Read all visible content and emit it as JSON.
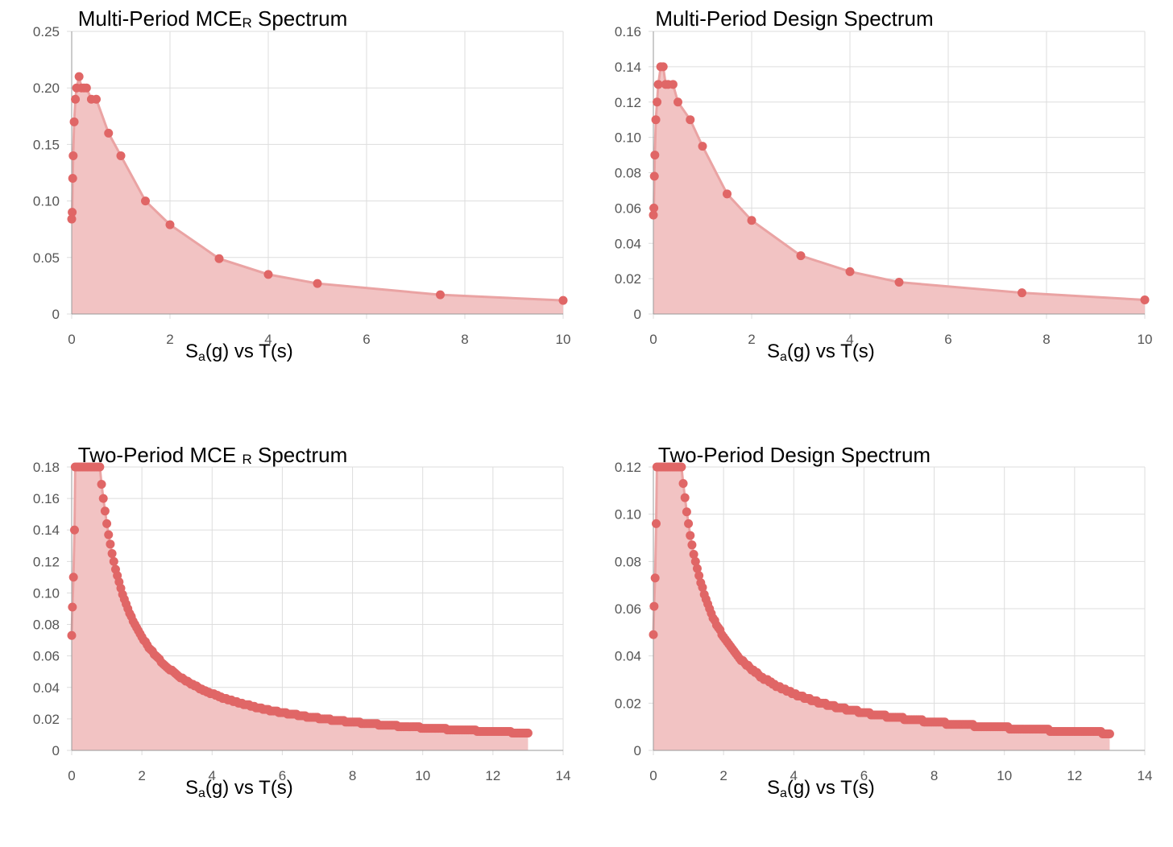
{
  "chart_data": [
    {
      "type": "area",
      "title": {
        "prefix": "Multi-Period MCE",
        "sub": "R",
        "suffix": " Spectrum"
      },
      "xlabel": {
        "prefix": "S",
        "sub": "a",
        "suffix": "(g) vs T(s)"
      },
      "xlim": [
        0,
        10
      ],
      "ylim": [
        0,
        0.25
      ],
      "xticks": [
        "0",
        "2",
        "4",
        "6",
        "8",
        "10"
      ],
      "yticks": [
        "0",
        "0.05",
        "0.10",
        "0.15",
        "0.20",
        "0.25"
      ],
      "grid": true,
      "color": "#e06666",
      "fill": "#f2c3c3",
      "x": [
        0,
        0.01,
        0.02,
        0.03,
        0.05,
        0.075,
        0.1,
        0.15,
        0.2,
        0.25,
        0.3,
        0.4,
        0.5,
        0.75,
        1,
        1.5,
        2,
        3,
        4,
        5,
        7.5,
        10
      ],
      "y": [
        0.084,
        0.09,
        0.12,
        0.14,
        0.17,
        0.19,
        0.2,
        0.21,
        0.2,
        0.2,
        0.2,
        0.19,
        0.19,
        0.16,
        0.14,
        0.1,
        0.079,
        0.049,
        0.035,
        0.027,
        0.017,
        0.012
      ]
    },
    {
      "type": "area",
      "title": {
        "prefix": "Multi-Period Design Spectrum",
        "sub": "",
        "suffix": ""
      },
      "xlabel": {
        "prefix": "S",
        "sub": "a",
        "suffix": "(g) vs T(s)"
      },
      "xlim": [
        0,
        10
      ],
      "ylim": [
        0,
        0.16
      ],
      "xticks": [
        "0",
        "2",
        "4",
        "6",
        "8",
        "10"
      ],
      "yticks": [
        "0",
        "0.02",
        "0.04",
        "0.06",
        "0.08",
        "0.10",
        "0.12",
        "0.14",
        "0.16"
      ],
      "grid": true,
      "color": "#e06666",
      "fill": "#f2c3c3",
      "x": [
        0,
        0.01,
        0.02,
        0.03,
        0.05,
        0.075,
        0.1,
        0.15,
        0.2,
        0.25,
        0.3,
        0.4,
        0.5,
        0.75,
        1,
        1.5,
        2,
        3,
        4,
        5,
        7.5,
        10
      ],
      "y": [
        0.056,
        0.06,
        0.078,
        0.09,
        0.11,
        0.12,
        0.13,
        0.14,
        0.14,
        0.13,
        0.13,
        0.13,
        0.12,
        0.11,
        0.095,
        0.068,
        0.053,
        0.033,
        0.024,
        0.018,
        0.012,
        0.008
      ]
    },
    {
      "type": "area",
      "title": {
        "prefix": "Two-Period MCE",
        "sub": "R",
        "suffix": "Spectrum"
      },
      "xlabel": {
        "prefix": "S",
        "sub": "a",
        "suffix": "(g) vs T(s)"
      },
      "xlim": [
        0,
        14
      ],
      "ylim": [
        0,
        0.18
      ],
      "xticks": [
        "0",
        "2",
        "4",
        "6",
        "8",
        "10",
        "12",
        "14"
      ],
      "yticks": [
        "0",
        "0.02",
        "0.04",
        "0.06",
        "0.08",
        "0.10",
        "0.12",
        "0.14",
        "0.16",
        "0.18"
      ],
      "grid": true,
      "color": "#e06666",
      "fill": "#f2c3c3",
      "spectrum": {
        "T0": 0.17,
        "TS": 0.8,
        "PGA": 0.073,
        "SDS": 0.18,
        "SD1": 0.144,
        "Tmax": 13,
        "step": 0.05
      },
      "x": [
        0,
        0.02,
        0.05,
        0.08,
        0.1,
        0.15,
        0.2,
        0.25,
        0.3,
        0.35,
        0.4,
        0.45,
        0.5,
        0.55,
        0.6,
        0.65,
        0.7,
        0.75,
        0.8
      ],
      "y": [
        0.073,
        0.091,
        0.11,
        0.14,
        0.18,
        0.18,
        0.18,
        0.18,
        0.18,
        0.18,
        0.18,
        0.18,
        0.18,
        0.18,
        0.18,
        0.18,
        0.18,
        0.18,
        0.18
      ]
    },
    {
      "type": "area",
      "title": {
        "prefix": "Two-Period Design Spectrum",
        "sub": "",
        "suffix": ""
      },
      "xlabel": {
        "prefix": "S",
        "sub": "a",
        "suffix": "(g) vs T(s)"
      },
      "xlim": [
        0,
        14
      ],
      "ylim": [
        0,
        0.12
      ],
      "xticks": [
        "0",
        "2",
        "4",
        "6",
        "8",
        "10",
        "12",
        "14"
      ],
      "yticks": [
        "0",
        "0.02",
        "0.04",
        "0.06",
        "0.08",
        "0.10",
        "0.12"
      ],
      "grid": true,
      "color": "#e06666",
      "fill": "#f2c3c3",
      "spectrum": {
        "T0": 0.17,
        "TS": 0.8,
        "PGA": 0.049,
        "SDS": 0.12,
        "SD1": 0.096,
        "Tmax": 13,
        "step": 0.05
      },
      "x": [
        0,
        0.02,
        0.05,
        0.08,
        0.1,
        0.15,
        0.2,
        0.25,
        0.3,
        0.35,
        0.4,
        0.45,
        0.5,
        0.55,
        0.6,
        0.65,
        0.7,
        0.75,
        0.8
      ],
      "y": [
        0.049,
        0.061,
        0.073,
        0.096,
        0.12,
        0.12,
        0.12,
        0.12,
        0.12,
        0.12,
        0.12,
        0.12,
        0.12,
        0.12,
        0.12,
        0.12,
        0.12,
        0.12,
        0.12
      ]
    }
  ]
}
